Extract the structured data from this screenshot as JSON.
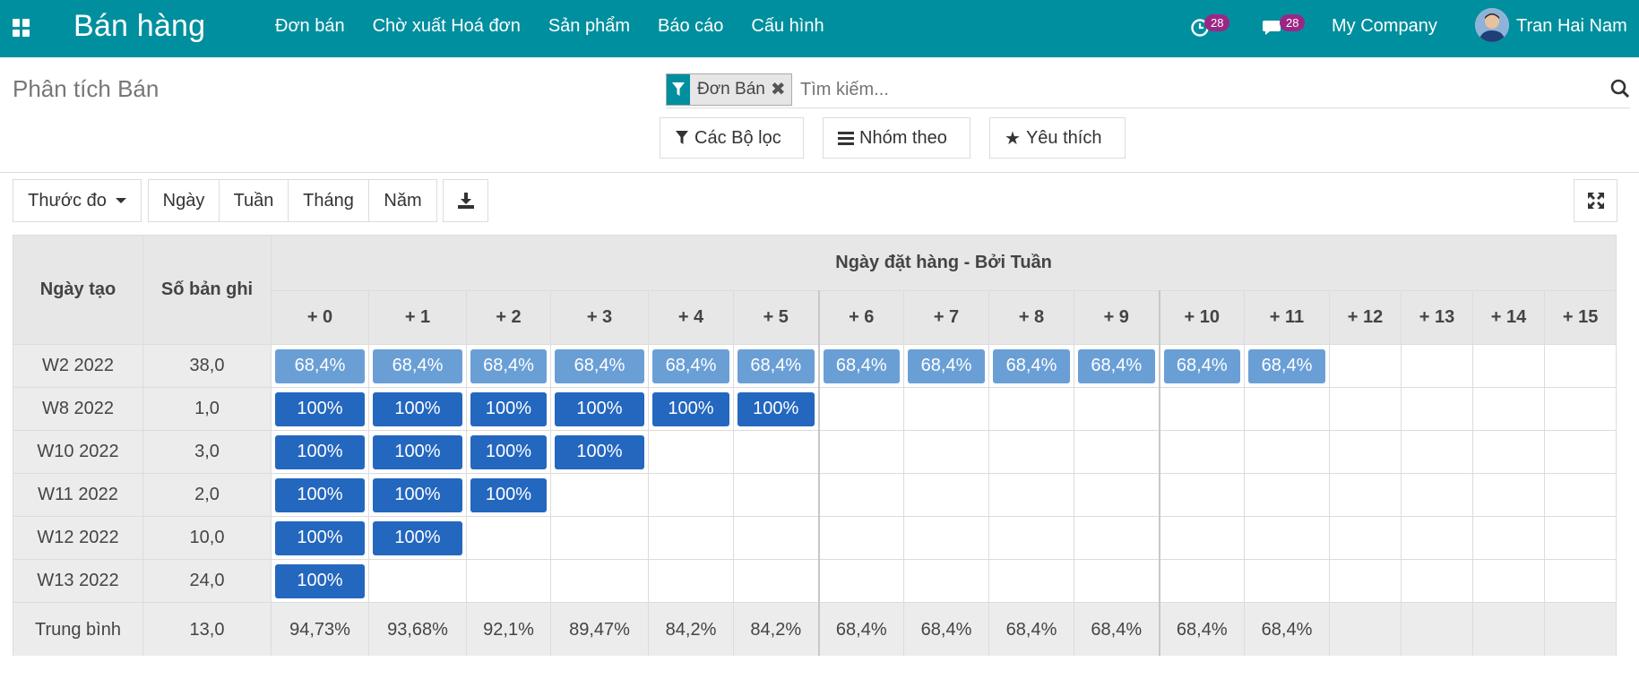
{
  "navbar": {
    "brand": "Bán hàng",
    "menu": [
      "Đơn bán",
      "Chờ xuất Hoá đơn",
      "Sản phẩm",
      "Báo cáo",
      "Cấu hình"
    ],
    "activity_count": "28",
    "message_count": "28",
    "company": "My Company",
    "user": "Tran Hai Nam"
  },
  "control_panel": {
    "title": "Phân tích Bán",
    "facet": "Đơn Bán",
    "search_placeholder": "Tìm kiếm...",
    "filters_label": "Các Bộ lọc",
    "groupby_label": "Nhóm theo",
    "favorites_label": "Yêu thích"
  },
  "toolbar": {
    "measures_label": "Thước đo",
    "intervals": [
      "Ngày",
      "Tuần",
      "Tháng",
      "Năm"
    ]
  },
  "cohort": {
    "col_row_header": "Ngày tạo",
    "col_count_header": "Số bản ghi",
    "group_header": "Ngày đặt hàng - Bởi Tuần",
    "periods": [
      "+ 0",
      "+ 1",
      "+ 2",
      "+ 3",
      "+ 4",
      "+ 5",
      "+ 6",
      "+ 7",
      "+ 8",
      "+ 9",
      "+ 10",
      "+ 11",
      "+ 12",
      "+ 13",
      "+ 14",
      "+ 15"
    ],
    "rows": [
      {
        "label": "W2 2022",
        "count": "38,0",
        "values": [
          "68,4%",
          "68,4%",
          "68,4%",
          "68,4%",
          "68,4%",
          "68,4%",
          "68,4%",
          "68,4%",
          "68,4%",
          "68,4%",
          "68,4%",
          "68,4%"
        ]
      },
      {
        "label": "W8 2022",
        "count": "1,0",
        "values": [
          "100%",
          "100%",
          "100%",
          "100%",
          "100%",
          "100%"
        ]
      },
      {
        "label": "W10 2022",
        "count": "3,0",
        "values": [
          "100%",
          "100%",
          "100%",
          "100%"
        ]
      },
      {
        "label": "W11 2022",
        "count": "2,0",
        "values": [
          "100%",
          "100%",
          "100%"
        ]
      },
      {
        "label": "W12 2022",
        "count": "10,0",
        "values": [
          "100%",
          "100%"
        ]
      },
      {
        "label": "W13 2022",
        "count": "24,0",
        "values": [
          "100%"
        ]
      }
    ],
    "footer": {
      "label": "Trung bình",
      "count": "13,0",
      "values": [
        "94,73%",
        "93,68%",
        "92,1%",
        "89,47%",
        "84,2%",
        "84,2%",
        "68,4%",
        "68,4%",
        "68,4%",
        "68,4%",
        "68,4%",
        "68,4%"
      ]
    }
  }
}
